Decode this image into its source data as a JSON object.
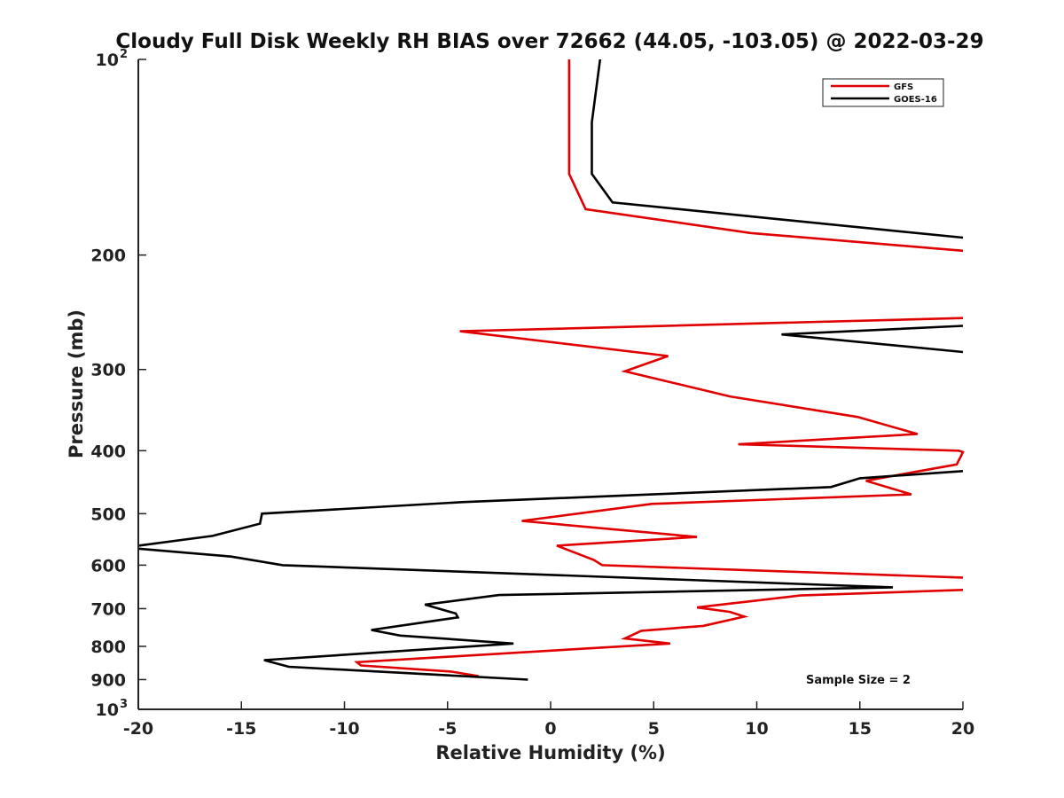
{
  "chart_data": {
    "type": "line",
    "title": "Cloudy Full Disk Weekly RH BIAS over 72662 (44.05, -103.05) @ 2022-03-29",
    "xlabel": "Relative Humidity (%)",
    "ylabel": "Pressure (mb)",
    "xlim": [
      -20,
      20
    ],
    "ylim": [
      100,
      1000
    ],
    "yscale": "log",
    "y_reversed": true,
    "xticks": [
      "-20",
      "-15",
      "-10",
      "-5",
      "0",
      "5",
      "10",
      "15",
      "20"
    ],
    "yticks": [
      {
        "value": 100,
        "label": "10",
        "sup": "2"
      },
      {
        "value": 200,
        "label": "200",
        "sup": ""
      },
      {
        "value": 300,
        "label": "300",
        "sup": ""
      },
      {
        "value": 400,
        "label": "400",
        "sup": ""
      },
      {
        "value": 500,
        "label": "500",
        "sup": ""
      },
      {
        "value": 600,
        "label": "600",
        "sup": ""
      },
      {
        "value": 700,
        "label": "700",
        "sup": ""
      },
      {
        "value": 800,
        "label": "800",
        "sup": ""
      },
      {
        "value": 900,
        "label": "900",
        "sup": ""
      },
      {
        "value": 1000,
        "label": "10",
        "sup": "3"
      }
    ],
    "grid": false,
    "legend_position": "top-right",
    "annotation": "Sample Size = 2",
    "series": [
      {
        "name": "GFS",
        "color": "#e00000",
        "points": [
          [
            0.9,
            100
          ],
          [
            0.9,
            150
          ],
          [
            1.7,
            170
          ],
          [
            9.7,
            185
          ],
          [
            20,
            197
          ],
          [
            null,
            null
          ],
          [
            20,
            250
          ],
          [
            -4.4,
            262
          ],
          [
            5.7,
            286
          ],
          [
            3.6,
            302
          ],
          [
            8.7,
            330
          ],
          [
            14.9,
            355
          ],
          [
            17.8,
            377
          ],
          [
            9.1,
            391
          ],
          [
            19.8,
            400
          ],
          [
            20,
            402
          ],
          [
            19.7,
            420
          ],
          [
            15.3,
            445
          ],
          [
            17.5,
            467
          ],
          [
            4.9,
            483
          ],
          [
            -1.4,
            513
          ],
          [
            7.1,
            543
          ],
          [
            0.3,
            560
          ],
          [
            2.1,
            589
          ],
          [
            2.5,
            600
          ],
          [
            20,
            627
          ],
          [
            null,
            null
          ],
          [
            20,
            655
          ],
          [
            12.1,
            668
          ],
          [
            7.1,
            697
          ],
          [
            8.7,
            708
          ],
          [
            9.4,
            720
          ],
          [
            7.4,
            744
          ],
          [
            4.4,
            757
          ],
          [
            3.6,
            778
          ],
          [
            5.8,
            792
          ],
          [
            -9.4,
            846
          ],
          [
            -9.2,
            856
          ],
          [
            -4.8,
            875
          ],
          [
            -3.5,
            889
          ]
        ]
      },
      {
        "name": "GOES-16",
        "color": "#000000",
        "points": [
          [
            2.4,
            100
          ],
          [
            2.0,
            125
          ],
          [
            2.0,
            150
          ],
          [
            3.0,
            166
          ],
          [
            15.5,
            182
          ],
          [
            20,
            188
          ],
          [
            null,
            null
          ],
          [
            20,
            257
          ],
          [
            11.2,
            265
          ],
          [
            20,
            282
          ],
          [
            null,
            null
          ],
          [
            20,
            430
          ],
          [
            15.0,
            441
          ],
          [
            13.6,
            455
          ],
          [
            -4.3,
            480
          ],
          [
            -14.0,
            500
          ],
          [
            -14.1,
            518
          ],
          [
            -16.4,
            541
          ],
          [
            -20,
            560
          ],
          [
            null,
            null
          ],
          [
            -20,
            566
          ],
          [
            -15.5,
            582
          ],
          [
            -13.0,
            600
          ],
          [
            16.6,
            649
          ],
          [
            -2.5,
            667
          ],
          [
            -6.1,
            690
          ],
          [
            -4.6,
            712
          ],
          [
            -4.5,
            722
          ],
          [
            -8.7,
            755
          ],
          [
            -7.3,
            770
          ],
          [
            -1.8,
            792
          ],
          [
            -13.9,
            840
          ],
          [
            -12.7,
            860
          ],
          [
            -1.1,
            900
          ]
        ]
      }
    ]
  }
}
